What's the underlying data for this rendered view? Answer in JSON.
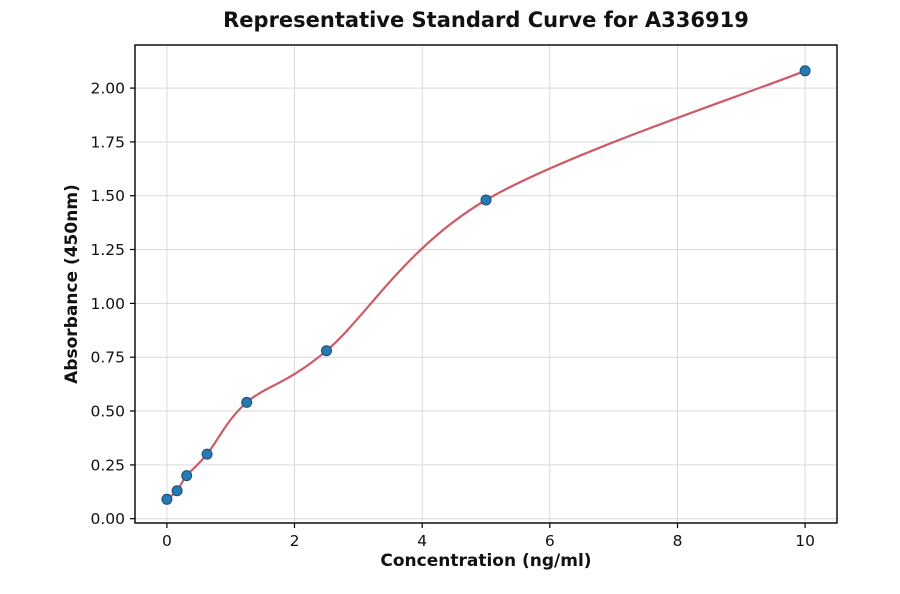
{
  "chart_data": {
    "type": "scatter",
    "title": "Representative Standard Curve for A336919",
    "xlabel": "Concentration (ng/ml)",
    "ylabel": "Absorbance (450nm)",
    "xlim": [
      -0.5,
      10.5
    ],
    "ylim": [
      -0.02,
      2.2
    ],
    "grid": true,
    "legend": "none",
    "xtick_values": [
      0,
      2,
      4,
      6,
      8,
      10
    ],
    "xtick_labels": [
      "0",
      "2",
      "4",
      "6",
      "8",
      "10"
    ],
    "ytick_values": [
      0.0,
      0.25,
      0.5,
      0.75,
      1.0,
      1.25,
      1.5,
      1.75,
      2.0
    ],
    "ytick_labels": [
      "0.00",
      "0.25",
      "0.50",
      "0.75",
      "1.00",
      "1.25",
      "1.50",
      "1.75",
      "2.00"
    ],
    "x": [
      0,
      0.16,
      0.31,
      0.63,
      1.25,
      2.5,
      5,
      10
    ],
    "y": [
      0.09,
      0.13,
      0.2,
      0.3,
      0.54,
      0.78,
      1.48,
      2.08
    ],
    "fit": "smooth 4PL-style curve through the standard points, from (0, 0.09) to (10, 2.08)",
    "colors": {
      "point_fill": "#2878b4",
      "point_edge": "#1c4e75",
      "curve": "#cd5b67",
      "grid": "#d9d9d9",
      "axis": "#000000",
      "text": "#111111",
      "background": "#ffffff"
    }
  }
}
